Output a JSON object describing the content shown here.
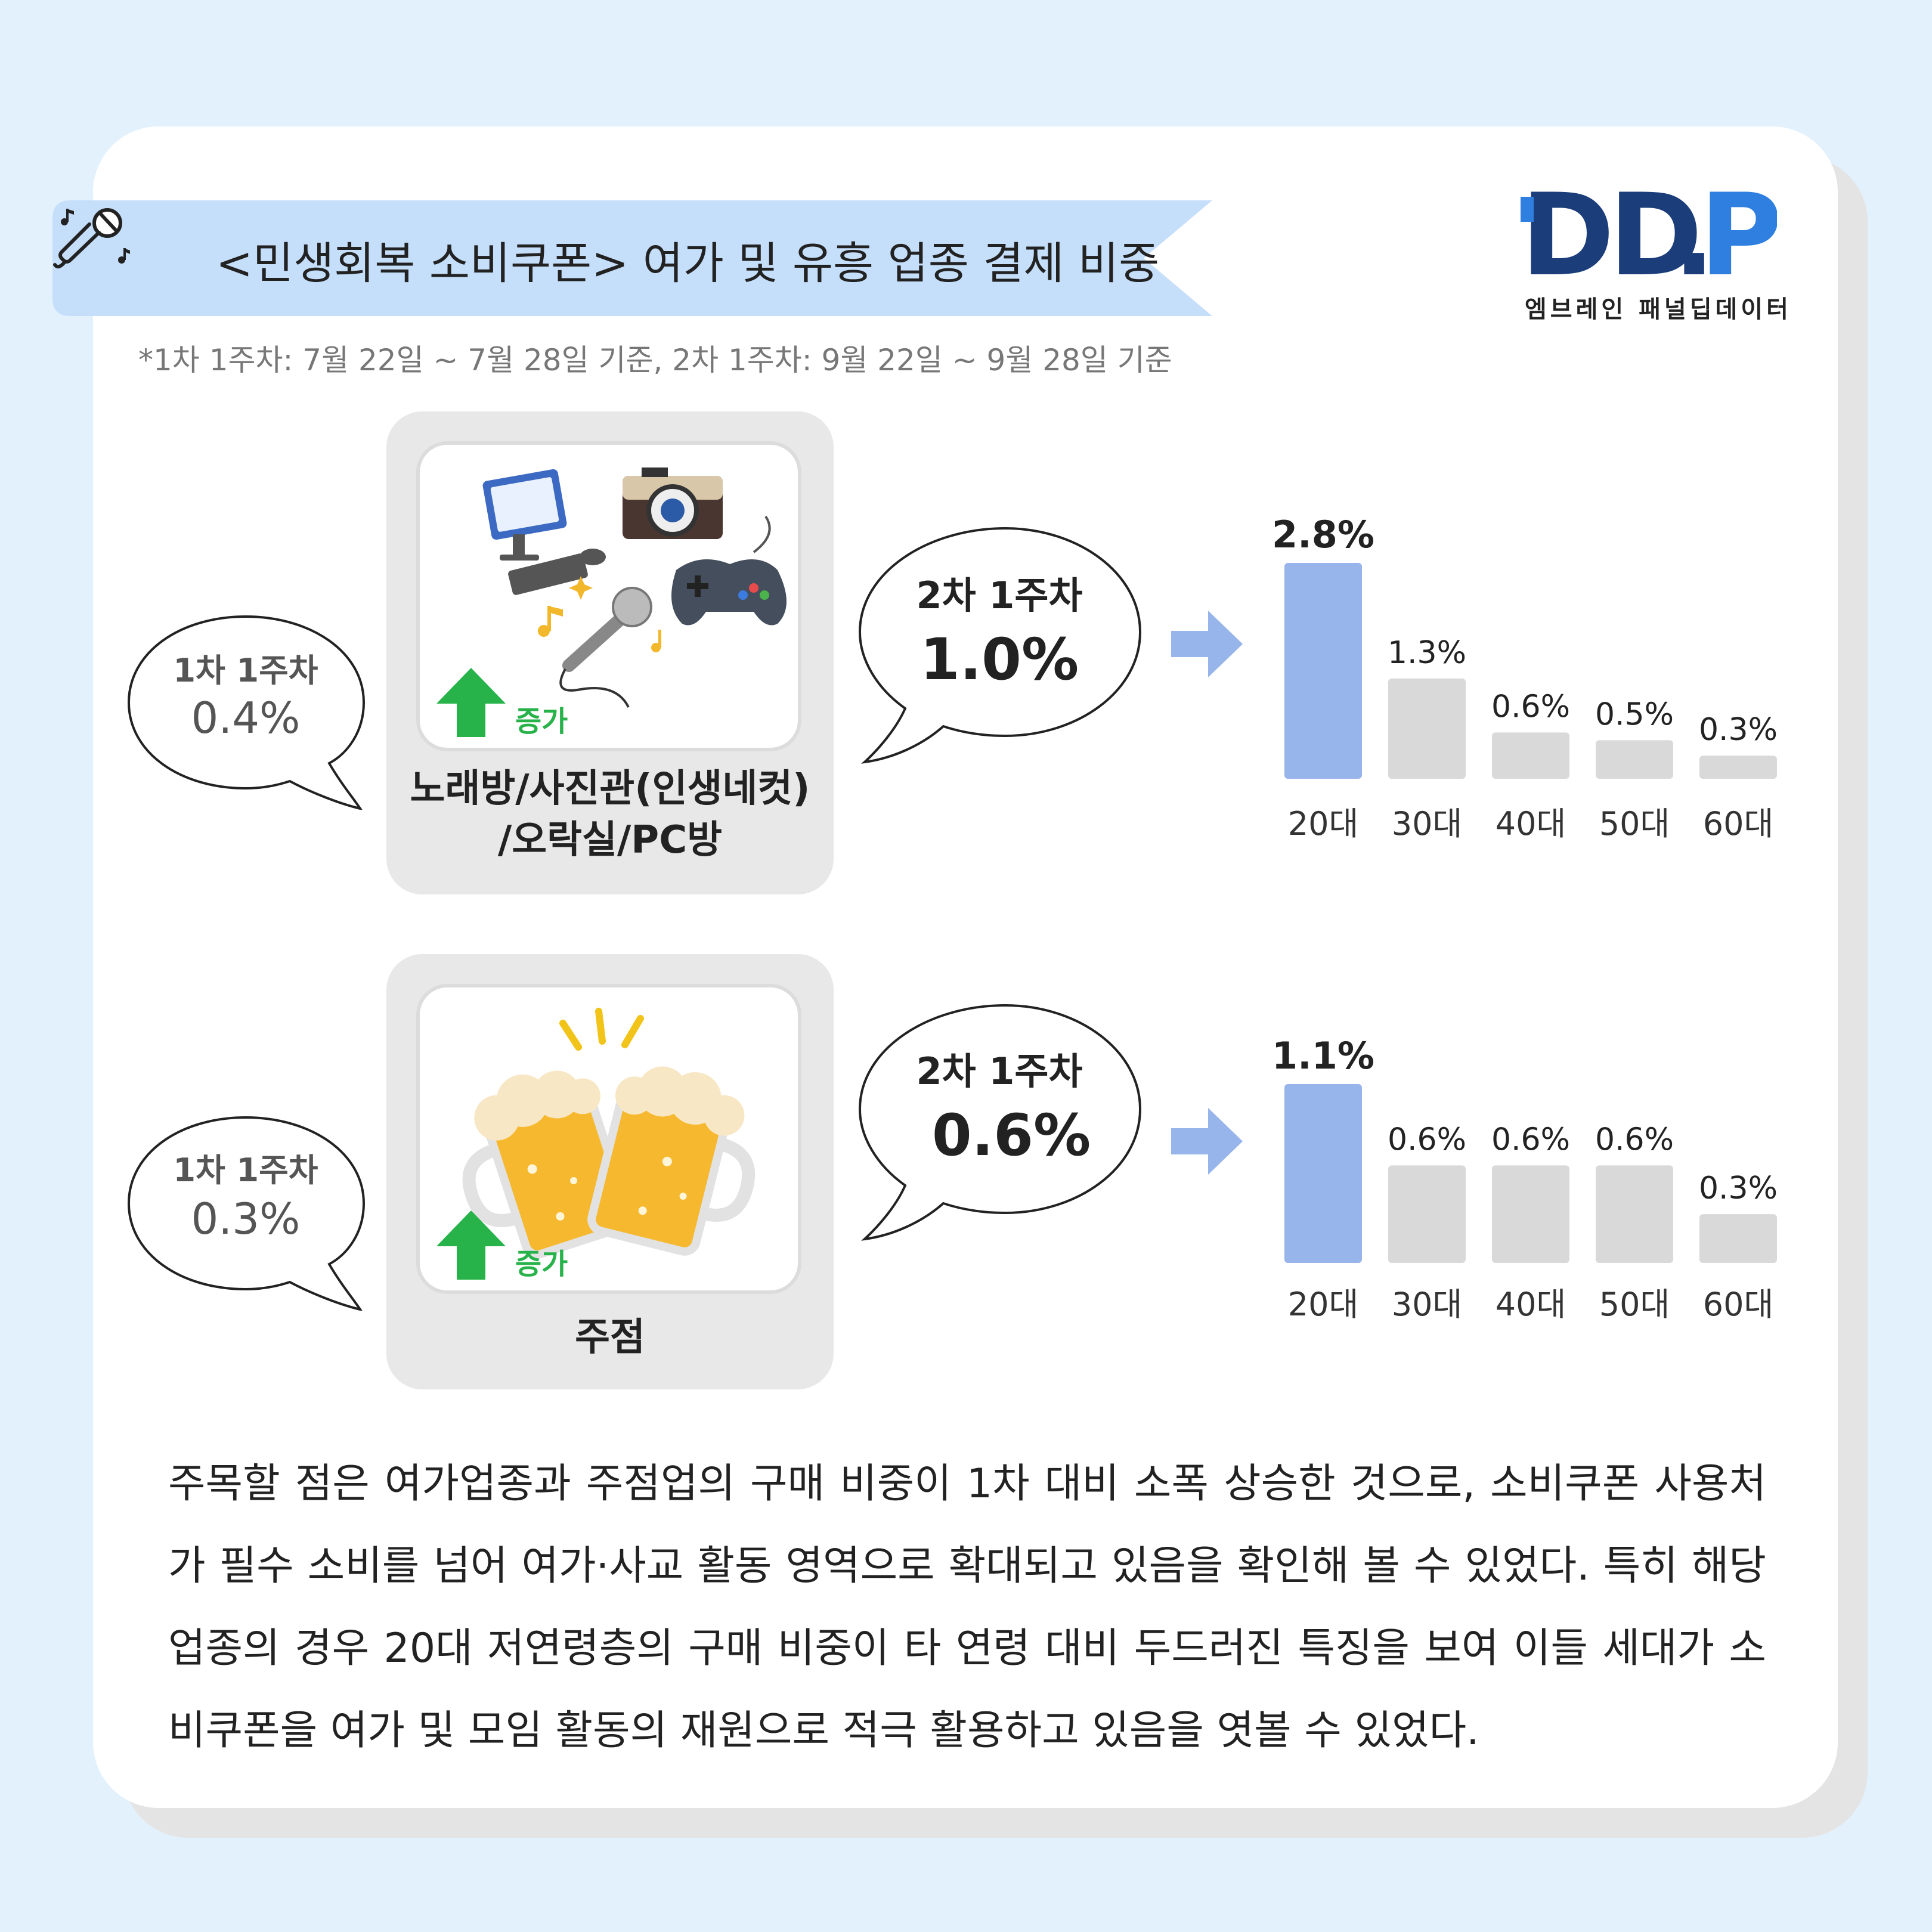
{
  "header": {
    "title": "<민생회복 소비쿠폰> 여가 및 유흥 업종 결제 비중",
    "note": "*1차 1주차: 7월 22일 ~ 7월 28일 기준, 2차 1주차: 9월 22일 ~ 9월 28일 기준",
    "logo_text": "DD.P",
    "logo_sub": "엠브레인 패널딥데이터",
    "title_icon": "microphone-music-icon"
  },
  "colors": {
    "background": "#e3f1fd",
    "ribbon": "#c5defa",
    "highlight_bar": "#97b5ea",
    "other_bar": "#d9d9d9",
    "increase_green": "#27b24a",
    "logo_navy": "#1b3d7a",
    "logo_blue": "#2f7fe0"
  },
  "sections": [
    {
      "category": "노래방/사진관(인생네컷)\n/오락실/PC방",
      "category_line1": "노래방/사진관(인생네컷)",
      "category_line2": "/오락실/PC방",
      "icon": "leisure-collage-icon",
      "increase_label": "증가",
      "first_label": "1차 1주차",
      "first_value": "0.4%",
      "second_label": "2차 1주차",
      "second_value": "1.0%"
    },
    {
      "category": "주점",
      "category_line1": "주점",
      "category_line2": "",
      "icon": "beer-toast-icon",
      "increase_label": "증가",
      "first_label": "1차 1주차",
      "first_value": "0.3%",
      "second_label": "2차 1주차",
      "second_value": "0.6%"
    }
  ],
  "chart_data": [
    {
      "type": "bar",
      "categories": [
        "20대",
        "30대",
        "40대",
        "50대",
        "60대"
      ],
      "values": [
        2.8,
        1.3,
        0.6,
        0.5,
        0.3
      ],
      "labels": [
        "2.8%",
        "1.3%",
        "0.6%",
        "0.5%",
        "0.3%"
      ],
      "highlight_index": 0,
      "ylim": [
        0,
        2.8
      ],
      "grid": false,
      "legend": "none"
    },
    {
      "type": "bar",
      "categories": [
        "20대",
        "30대",
        "40대",
        "50대",
        "60대"
      ],
      "values": [
        1.1,
        0.6,
        0.6,
        0.6,
        0.3
      ],
      "labels": [
        "1.1%",
        "0.6%",
        "0.6%",
        "0.6%",
        "0.3%"
      ],
      "highlight_index": 0,
      "ylim": [
        0,
        1.1
      ],
      "grid": false,
      "legend": "none"
    }
  ],
  "paragraph": "주목할 점은 여가업종과 주점업의 구매 비중이 1차 대비 소폭 상승한 것으로, 소비쿠폰 사용처가 필수 소비를 넘어 여가·사교 활동 영역으로 확대되고 있음을 확인해 볼 수 있었다. 특히 해당 업종의 경우 20대 저연령층의 구매 비중이 타 연령 대비 두드러진 특징을 보여 이들 세대가 소비쿠폰을 여가 및 모임 활동의 재원으로 적극 활용하고 있음을 엿볼 수 있었다."
}
